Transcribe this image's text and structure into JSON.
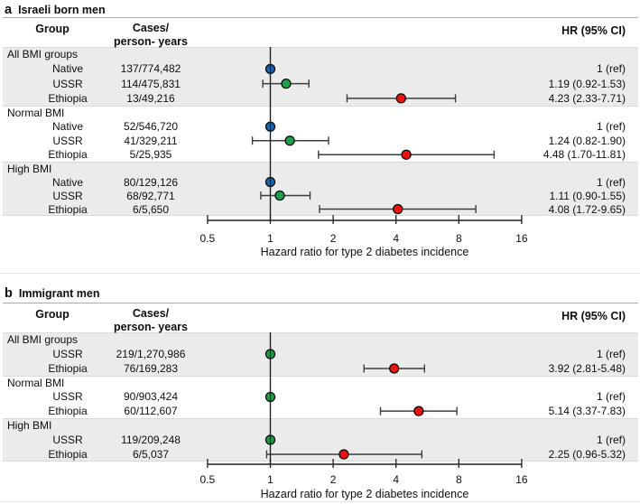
{
  "figure": {
    "colors": {
      "blue": "#1368b5",
      "green": "#1aa24b",
      "red": "#ec1410",
      "band": "#ebebeb",
      "error_bar": "#3d3d3d",
      "axis": "#1f1f1f"
    }
  },
  "chart_data": [
    {
      "type": "forest",
      "panel_letter": "a",
      "title": "Israeli born men",
      "columns": {
        "group": "Group",
        "cases_line1": "Cases/",
        "cases_line2": "person- years",
        "hr": "HR (95% CI)"
      },
      "x_scale": "log2",
      "x_ticks": [
        0.5,
        1,
        2,
        4,
        8,
        16
      ],
      "x_tick_labels": [
        "0.5",
        "1",
        "2",
        "4",
        "8",
        "16"
      ],
      "xlabel": "Hazard ratio for type 2 diabetes incidence",
      "sections": [
        {
          "label": "All BMI groups",
          "shaded": true,
          "rows": [
            {
              "group": "Native",
              "cases": "137/774,482",
              "hr_label": "1 (ref)",
              "hr": 1,
              "color": "blue"
            },
            {
              "group": "USSR",
              "cases": "114/475,831",
              "hr_label": "1.19 (0.92-1.53)",
              "hr": 1.19,
              "lo": 0.92,
              "hi": 1.53,
              "color": "green"
            },
            {
              "group": "Ethiopia",
              "cases": "13/49,216",
              "hr_label": "4.23 (2.33-7.71)",
              "hr": 4.23,
              "lo": 2.33,
              "hi": 7.71,
              "color": "red"
            }
          ]
        },
        {
          "label": "Normal BMI",
          "shaded": false,
          "rows": [
            {
              "group": "Native",
              "cases": "52/546,720",
              "hr_label": "1 (ref)",
              "hr": 1,
              "color": "blue"
            },
            {
              "group": "USSR",
              "cases": "41/329,211",
              "hr_label": "1.24 (0.82-1.90)",
              "hr": 1.24,
              "lo": 0.82,
              "hi": 1.9,
              "color": "green"
            },
            {
              "group": "Ethiopia",
              "cases": "5/25,935",
              "hr_label": "4.48 (1.70-11.81)",
              "hr": 4.48,
              "lo": 1.7,
              "hi": 11.81,
              "color": "red"
            }
          ]
        },
        {
          "label": "High BMI",
          "shaded": true,
          "rows": [
            {
              "group": "Native",
              "cases": "80/129,126",
              "hr_label": "1 (ref)",
              "hr": 1,
              "color": "blue"
            },
            {
              "group": "USSR",
              "cases": "68/92,771",
              "hr_label": "1.11 (0.90-1.55)",
              "hr": 1.11,
              "lo": 0.9,
              "hi": 1.55,
              "color": "green"
            },
            {
              "group": "Ethiopia",
              "cases": "6/5,650",
              "hr_label": "4.08 (1.72-9.65)",
              "hr": 4.08,
              "lo": 1.72,
              "hi": 9.65,
              "color": "red"
            }
          ]
        }
      ]
    },
    {
      "type": "forest",
      "panel_letter": "b",
      "title": "Immigrant men",
      "columns": {
        "group": "Group",
        "cases_line1": "Cases/",
        "cases_line2": "person- years",
        "hr": "HR (95% CI)"
      },
      "x_scale": "log2",
      "x_ticks": [
        0.5,
        1,
        2,
        4,
        8,
        16
      ],
      "x_tick_labels": [
        "0.5",
        "1",
        "2",
        "4",
        "8",
        "16"
      ],
      "xlabel": "Hazard ratio for type 2 diabetes incidence",
      "sections": [
        {
          "label": "All BMI groups",
          "shaded": true,
          "rows": [
            {
              "group": "USSR",
              "cases": "219/1,270,986",
              "hr_label": "1 (ref)",
              "hr": 1,
              "color": "green"
            },
            {
              "group": "Ethiopia",
              "cases": "76/169,283",
              "hr_label": "3.92 (2.81-5.48)",
              "hr": 3.92,
              "lo": 2.81,
              "hi": 5.48,
              "color": "red"
            }
          ]
        },
        {
          "label": "Normal BMI",
          "shaded": false,
          "rows": [
            {
              "group": "USSR",
              "cases": "90/903,424",
              "hr_label": "1 (ref)",
              "hr": 1,
              "color": "green"
            },
            {
              "group": "Ethiopia",
              "cases": "60/112,607",
              "hr_label": "5.14 (3.37-7.83)",
              "hr": 5.14,
              "lo": 3.37,
              "hi": 7.83,
              "color": "red"
            }
          ]
        },
        {
          "label": "High BMI",
          "shaded": true,
          "rows": [
            {
              "group": "USSR",
              "cases": "119/209,248",
              "hr_label": "1 (ref)",
              "hr": 1,
              "color": "green"
            },
            {
              "group": "Ethiopia",
              "cases": "6/5,037",
              "hr_label": "2.25 (0.96-5.32)",
              "hr": 2.25,
              "lo": 0.96,
              "hi": 5.32,
              "color": "red"
            }
          ]
        }
      ]
    }
  ]
}
